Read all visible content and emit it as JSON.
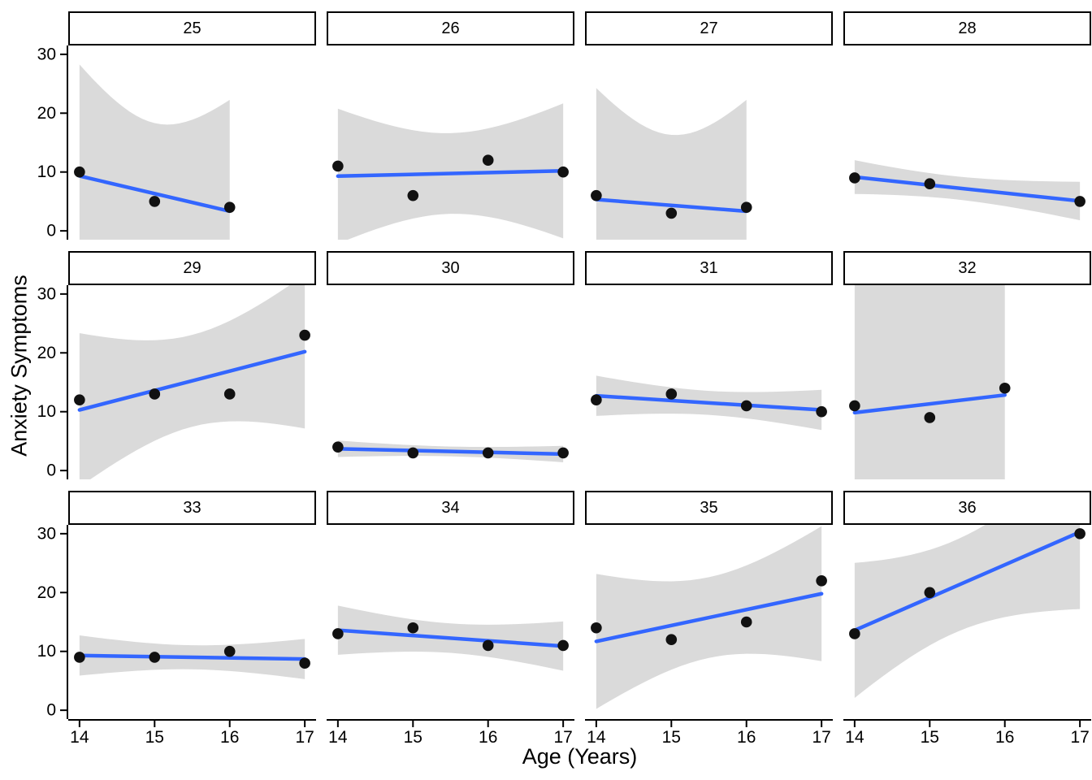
{
  "chart_data": {
    "type": "scatter",
    "title": "",
    "xlabel": "Age (Years)",
    "ylabel": "Anxiety Symptoms",
    "x_ticks": [
      14,
      15,
      16,
      17
    ],
    "y_ticks": [
      0,
      10,
      20,
      30
    ],
    "xlim": [
      13.85,
      17.15
    ],
    "ylim": [
      -1.5,
      31.5
    ],
    "grid": false,
    "layout": {
      "rows": 3,
      "cols": 4
    },
    "smooth": {
      "method": "lm",
      "ci_level": 0.95
    },
    "colors": {
      "line": "#3366FF",
      "band": "#DADADA",
      "point": "#111111",
      "axis": "#000000",
      "strip_border": "#000000",
      "strip_bg": "#ffffff"
    },
    "facets": [
      {
        "label": "25",
        "points": [
          [
            14,
            10
          ],
          [
            15,
            5
          ],
          [
            16,
            4
          ]
        ]
      },
      {
        "label": "26",
        "points": [
          [
            14,
            11
          ],
          [
            15,
            6
          ],
          [
            16,
            12
          ],
          [
            17,
            10
          ]
        ]
      },
      {
        "label": "27",
        "points": [
          [
            14,
            6
          ],
          [
            15,
            3
          ],
          [
            16,
            4
          ]
        ]
      },
      {
        "label": "28",
        "points": [
          [
            14,
            9
          ],
          [
            15,
            8
          ],
          [
            17,
            5
          ]
        ]
      },
      {
        "label": "29",
        "points": [
          [
            14,
            12
          ],
          [
            15,
            13
          ],
          [
            16,
            13
          ],
          [
            17,
            23
          ]
        ]
      },
      {
        "label": "30",
        "points": [
          [
            14,
            4
          ],
          [
            15,
            3
          ],
          [
            16,
            3
          ],
          [
            17,
            3
          ]
        ]
      },
      {
        "label": "31",
        "points": [
          [
            14,
            12
          ],
          [
            15,
            13
          ],
          [
            16,
            11
          ],
          [
            17,
            10
          ]
        ]
      },
      {
        "label": "32",
        "points": [
          [
            14,
            11
          ],
          [
            15,
            9
          ],
          [
            16,
            14
          ]
        ]
      },
      {
        "label": "33",
        "points": [
          [
            14,
            9
          ],
          [
            15,
            9
          ],
          [
            16,
            10
          ],
          [
            17,
            8
          ]
        ]
      },
      {
        "label": "34",
        "points": [
          [
            14,
            13
          ],
          [
            15,
            14
          ],
          [
            16,
            11
          ],
          [
            17,
            11
          ]
        ]
      },
      {
        "label": "35",
        "points": [
          [
            14,
            14
          ],
          [
            15,
            12
          ],
          [
            16,
            15
          ],
          [
            17,
            22
          ]
        ]
      },
      {
        "label": "36",
        "points": [
          [
            14,
            13
          ],
          [
            15,
            20
          ],
          [
            17,
            30
          ]
        ]
      }
    ]
  }
}
